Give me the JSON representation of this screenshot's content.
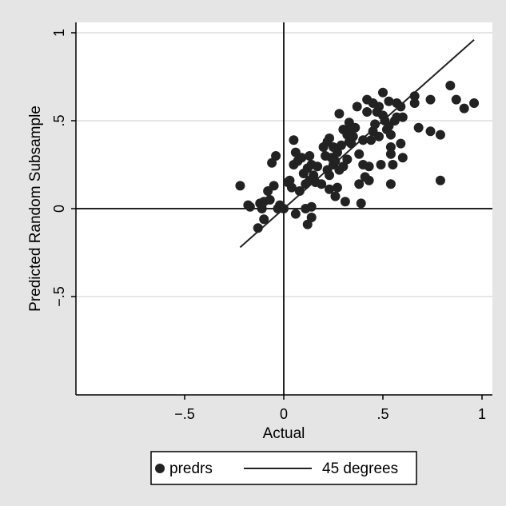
{
  "chart_data": {
    "type": "scatter",
    "title": "",
    "xlabel": "Actual",
    "ylabel": "Predicted Random Subsample",
    "xlim": [
      -1,
      1.05
    ],
    "ylim": [
      -1.05,
      1.05
    ],
    "x_ticks": [
      {
        "value": -0.5,
        "label": "−.5"
      },
      {
        "value": 0,
        "label": "0"
      },
      {
        "value": 0.5,
        "label": ".5"
      },
      {
        "value": 1,
        "label": "1"
      }
    ],
    "y_ticks": [
      {
        "value": -0.5,
        "label": "−.5"
      },
      {
        "value": 0,
        "label": "0"
      },
      {
        "value": 0.5,
        "label": ".5"
      },
      {
        "value": 1,
        "label": "1"
      }
    ],
    "grid": "horizontal",
    "reference_lines": {
      "x": 0,
      "y": 0
    },
    "legend": {
      "position": "bottom",
      "entries": [
        {
          "label": "predrs",
          "marker": "circle"
        },
        {
          "label": "45 degrees",
          "marker": "line"
        }
      ]
    },
    "colors": {
      "background": "#e5e5e5",
      "plot_area": "#ffffff",
      "markers": "#222222",
      "lines": "#222222",
      "grid": "#e6e6e6"
    },
    "series": [
      {
        "name": "predrs",
        "type": "scatter",
        "points": [
          [
            -0.22,
            0.13
          ],
          [
            -0.18,
            0.02
          ],
          [
            -0.17,
            0.01
          ],
          [
            -0.13,
            -0.11
          ],
          [
            -0.12,
            0.03
          ],
          [
            -0.11,
            0.0
          ],
          [
            -0.1,
            -0.06
          ],
          [
            -0.1,
            0.04
          ],
          [
            -0.08,
            0.1
          ],
          [
            -0.07,
            0.05
          ],
          [
            -0.06,
            0.26
          ],
          [
            -0.05,
            0.13
          ],
          [
            -0.04,
            0.3
          ],
          [
            -0.03,
            0.0
          ],
          [
            -0.02,
            0.02
          ],
          [
            0.0,
            0.0
          ],
          [
            0.02,
            0.15
          ],
          [
            0.03,
            0.16
          ],
          [
            0.04,
            0.12
          ],
          [
            0.05,
            0.25
          ],
          [
            0.05,
            0.39
          ],
          [
            0.06,
            0.32
          ],
          [
            0.06,
            -0.03
          ],
          [
            0.07,
            0.27
          ],
          [
            0.08,
            0.1
          ],
          [
            0.09,
            0.29
          ],
          [
            0.1,
            0.2
          ],
          [
            0.11,
            0.14
          ],
          [
            0.11,
            0.0
          ],
          [
            0.12,
            0.23
          ],
          [
            0.12,
            -0.09
          ],
          [
            0.13,
            0.3
          ],
          [
            0.13,
            0.16
          ],
          [
            0.14,
            0.01
          ],
          [
            0.14,
            0.25
          ],
          [
            0.14,
            -0.05
          ],
          [
            0.15,
            0.19
          ],
          [
            0.16,
            0.15
          ],
          [
            0.17,
            0.24
          ],
          [
            0.19,
            0.14
          ],
          [
            0.2,
            0.35
          ],
          [
            0.21,
            0.3
          ],
          [
            0.22,
            0.38
          ],
          [
            0.22,
            0.22
          ],
          [
            0.23,
            0.4
          ],
          [
            0.23,
            0.19
          ],
          [
            0.23,
            0.11
          ],
          [
            0.24,
            0.29
          ],
          [
            0.25,
            0.35
          ],
          [
            0.25,
            0.25
          ],
          [
            0.26,
            0.27
          ],
          [
            0.26,
            0.07
          ],
          [
            0.27,
            0.12
          ],
          [
            0.27,
            0.32
          ],
          [
            0.28,
            0.22
          ],
          [
            0.28,
            0.54
          ],
          [
            0.29,
            0.36
          ],
          [
            0.3,
            0.45
          ],
          [
            0.3,
            0.24
          ],
          [
            0.31,
            0.04
          ],
          [
            0.32,
            0.42
          ],
          [
            0.32,
            0.28
          ],
          [
            0.33,
            0.38
          ],
          [
            0.33,
            0.49
          ],
          [
            0.34,
            0.45
          ],
          [
            0.34,
            0.37
          ],
          [
            0.35,
            0.41
          ],
          [
            0.36,
            0.46
          ],
          [
            0.37,
            0.58
          ],
          [
            0.38,
            0.14
          ],
          [
            0.38,
            0.31
          ],
          [
            0.39,
            0.03
          ],
          [
            0.4,
            0.39
          ],
          [
            0.4,
            0.25
          ],
          [
            0.41,
            0.18
          ],
          [
            0.42,
            0.62
          ],
          [
            0.42,
            0.55
          ],
          [
            0.43,
            0.24
          ],
          [
            0.43,
            0.16
          ],
          [
            0.44,
            0.39
          ],
          [
            0.45,
            0.44
          ],
          [
            0.45,
            0.6
          ],
          [
            0.46,
            0.48
          ],
          [
            0.47,
            0.55
          ],
          [
            0.48,
            0.41
          ],
          [
            0.48,
            0.58
          ],
          [
            0.49,
            0.25
          ],
          [
            0.5,
            0.66
          ],
          [
            0.5,
            0.53
          ],
          [
            0.51,
            0.5
          ],
          [
            0.52,
            0.45
          ],
          [
            0.53,
            0.47
          ],
          [
            0.53,
            0.61
          ],
          [
            0.54,
            0.35
          ],
          [
            0.54,
            0.42
          ],
          [
            0.54,
            0.31
          ],
          [
            0.54,
            0.14
          ],
          [
            0.55,
            0.25
          ],
          [
            0.56,
            0.5
          ],
          [
            0.57,
            0.52
          ],
          [
            0.57,
            0.6
          ],
          [
            0.59,
            0.58
          ],
          [
            0.59,
            0.37
          ],
          [
            0.6,
            0.52
          ],
          [
            0.6,
            0.29
          ],
          [
            0.66,
            0.64
          ],
          [
            0.66,
            0.6
          ],
          [
            0.68,
            0.46
          ],
          [
            0.74,
            0.44
          ],
          [
            0.74,
            0.62
          ],
          [
            0.79,
            0.42
          ],
          [
            0.79,
            0.16
          ],
          [
            0.84,
            0.7
          ],
          [
            0.87,
            0.62
          ],
          [
            0.91,
            0.57
          ],
          [
            0.96,
            0.6
          ]
        ]
      },
      {
        "name": "45 degrees",
        "type": "line",
        "points": [
          [
            -0.22,
            -0.22
          ],
          [
            0.96,
            0.96
          ]
        ]
      }
    ]
  }
}
